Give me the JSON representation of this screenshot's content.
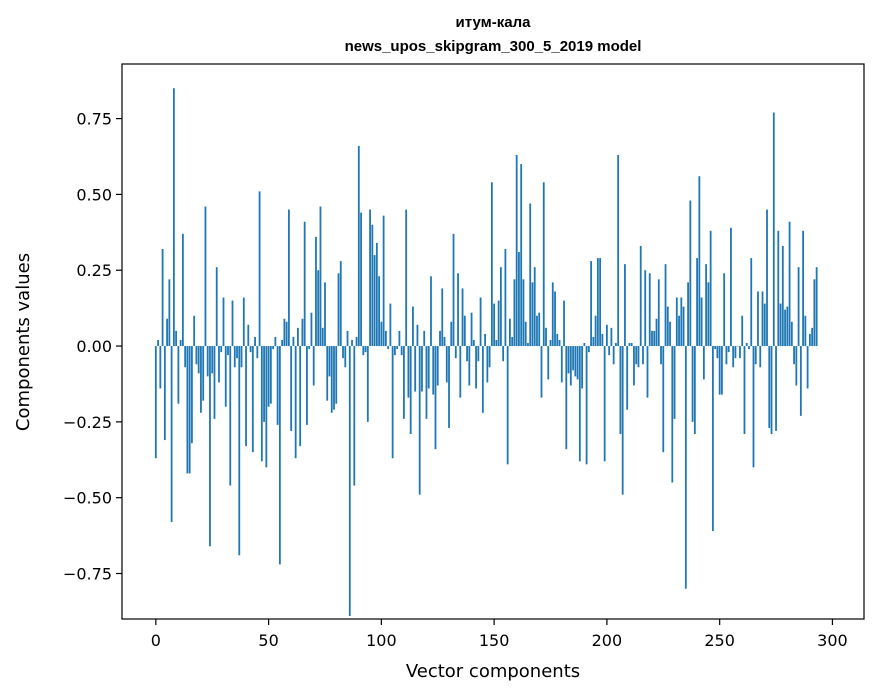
{
  "chart_data": {
    "type": "bar",
    "title": "итум-кала",
    "subtitle": "news_upos_skipgram_300_5_2019 model",
    "xlabel": "Vector components",
    "ylabel": "Components values",
    "xlim": [
      -15,
      314
    ],
    "ylim": [
      -0.9,
      0.93
    ],
    "xticks": [
      0,
      50,
      100,
      150,
      200,
      250,
      300
    ],
    "xtick_labels": [
      "0",
      "50",
      "100",
      "150",
      "200",
      "250",
      "300"
    ],
    "yticks": [
      -0.75,
      -0.5,
      -0.25,
      0.0,
      0.25,
      0.5,
      0.75
    ],
    "ytick_labels": [
      "−0.75",
      "−0.50",
      "−0.25",
      "0.00",
      "0.25",
      "0.50",
      "0.75"
    ],
    "grid": false,
    "bar_color": "#1f77b4",
    "series": [
      {
        "values": [
          -0.37,
          0.02,
          -0.14,
          0.32,
          -0.31,
          0.09,
          0.22,
          -0.58,
          0.85,
          0.05,
          -0.19,
          0.02,
          0.37,
          -0.07,
          -0.42,
          -0.42,
          -0.32,
          0.1,
          -0.06,
          -0.09,
          -0.22,
          -0.18,
          0.46,
          -0.1,
          -0.66,
          -0.09,
          -0.24,
          0.26,
          -0.12,
          -0.02,
          0.16,
          -0.2,
          -0.03,
          -0.46,
          0.15,
          -0.07,
          -0.04,
          -0.69,
          -0.07,
          0.16,
          -0.33,
          0.07,
          -0.02,
          -0.35,
          0.03,
          -0.04,
          0.51,
          -0.38,
          -0.25,
          -0.4,
          -0.2,
          -0.19,
          -0.01,
          0.03,
          -0.26,
          -0.72,
          0.02,
          0.09,
          0.08,
          0.45,
          -0.28,
          0.03,
          -0.37,
          0.06,
          -0.33,
          0.09,
          0.41,
          -0.26,
          -0.01,
          0.11,
          -0.13,
          0.36,
          0.25,
          0.46,
          0.06,
          0.21,
          -0.18,
          -0.1,
          -0.22,
          -0.21,
          -0.19,
          0.24,
          0.28,
          -0.04,
          -0.07,
          0.05,
          -0.89,
          0.02,
          -0.46,
          0.03,
          0.66,
          0.44,
          -0.03,
          -0.02,
          -0.25,
          0.45,
          0.4,
          0.3,
          0.34,
          0.23,
          0.08,
          0.43,
          0.05,
          -0.01,
          0.14,
          -0.37,
          -0.03,
          -0.01,
          0.05,
          -0.03,
          -0.24,
          0.45,
          -0.17,
          -0.29,
          0.13,
          -0.15,
          0.07,
          -0.49,
          -0.15,
          0.05,
          -0.24,
          -0.14,
          0.23,
          -0.16,
          -0.34,
          -0.13,
          0.05,
          0.19,
          0.03,
          -0.12,
          -0.27,
          0.08,
          0.37,
          -0.04,
          0.24,
          -0.17,
          0.19,
          0.1,
          -0.05,
          -0.13,
          0.11,
          0.02,
          -0.14,
          -0.05,
          0.16,
          -0.22,
          0.04,
          -0.12,
          -0.07,
          0.54,
          0.14,
          0.02,
          0.15,
          0.26,
          -0.05,
          0.32,
          -0.39,
          0.09,
          0.03,
          0.22,
          0.63,
          0.31,
          0.6,
          0.22,
          0.08,
          0.01,
          0.47,
          0.21,
          0.26,
          0.1,
          0.11,
          -0.17,
          0.54,
          0.06,
          -0.11,
          0.02,
          0.21,
          0.18,
          0.04,
          0.02,
          -0.12,
          0.15,
          -0.34,
          -0.09,
          -0.13,
          -0.08,
          -0.1,
          -0.11,
          -0.38,
          -0.14,
          0.01,
          -0.39,
          -0.02,
          0.28,
          0.03,
          0.1,
          0.29,
          0.29,
          0.04,
          -0.38,
          0.07,
          -0.03,
          0.06,
          -0.06,
          0.01,
          0.63,
          -0.29,
          -0.49,
          0.27,
          -0.21,
          0.01,
          0.01,
          -0.13,
          -0.06,
          -0.07,
          0.33,
          -0.06,
          0.25,
          -0.17,
          0.24,
          0.05,
          0.05,
          0.09,
          0.22,
          -0.06,
          -0.35,
          0.27,
          0.13,
          0.08,
          -0.45,
          -0.24,
          0.16,
          0.1,
          0.16,
          0.13,
          -0.8,
          0.21,
          0.48,
          -0.25,
          -0.29,
          0.29,
          0.56,
          0.16,
          -0.11,
          0.27,
          0.21,
          0.38,
          -0.61,
          -0.01,
          -0.04,
          -0.16,
          -0.16,
          0.24,
          -0.06,
          -0.02,
          0.39,
          -0.07,
          -0.04,
          0.0,
          -0.04,
          0.1,
          -0.29,
          0.01,
          -0.01,
          0.29,
          -0.4,
          -0.06,
          0.18,
          -0.07,
          0.18,
          0.14,
          0.45,
          -0.27,
          -0.29,
          0.77,
          -0.28,
          0.38,
          0.14,
          0.33,
          0.12,
          0.13,
          0.41,
          0.08,
          -0.06,
          -0.13,
          0.26,
          -0.23,
          0.38,
          0.1,
          -0.14,
          0.04,
          0.06,
          0.22,
          0.26
        ]
      }
    ]
  }
}
